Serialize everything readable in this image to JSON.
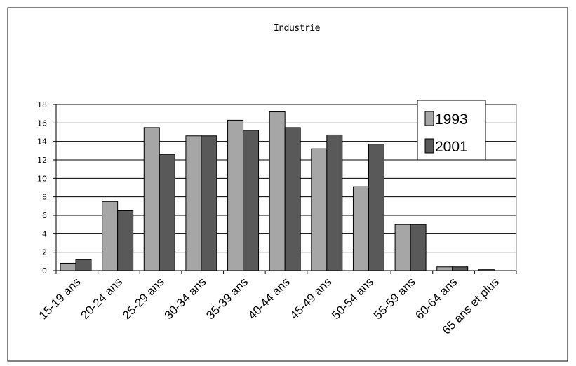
{
  "chart_data": {
    "type": "bar",
    "title": "Industrie",
    "categories": [
      "15-19 ans",
      "20-24 ans",
      "25-29 ans",
      "30-34 ans",
      "35-39 ans",
      "40-44 ans",
      "45-49 ans",
      "50-54 ans",
      "55-59 ans",
      "60-64 ans",
      "65 ans et plus"
    ],
    "series": [
      {
        "name": "1993",
        "color": "#a6a6a6",
        "values": [
          0.8,
          7.5,
          15.5,
          14.6,
          16.3,
          17.2,
          13.2,
          9.1,
          5.0,
          0.4,
          0.1
        ]
      },
      {
        "name": "2001",
        "color": "#595959",
        "values": [
          1.2,
          6.5,
          12.6,
          14.6,
          15.2,
          15.5,
          14.7,
          13.7,
          5.0,
          0.4,
          0.0
        ]
      }
    ],
    "yticks": [
      0,
      2,
      4,
      6,
      8,
      10,
      12,
      14,
      16,
      18
    ],
    "ylim": [
      0,
      18
    ],
    "xlabel": "",
    "ylabel": "",
    "grid": true,
    "legend_position": "top-right"
  }
}
